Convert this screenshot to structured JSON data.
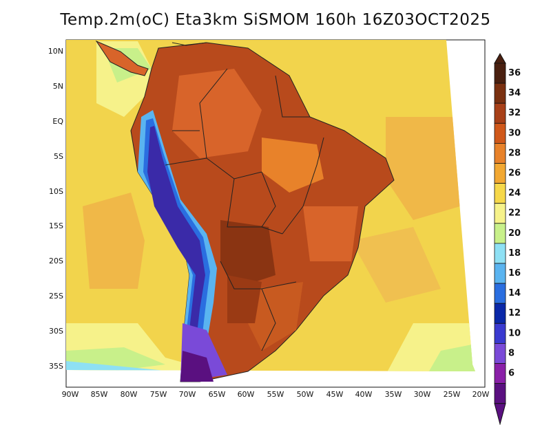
{
  "title": "Temp.2m(oC) Eta3km SiSMOM 160h 16Z03OCT2025",
  "axes": {
    "lat_labels": [
      "10N",
      "5N",
      "EQ",
      "5S",
      "10S",
      "15S",
      "20S",
      "25S",
      "30S",
      "35S"
    ],
    "lon_labels": [
      "90W",
      "85W",
      "80W",
      "75W",
      "70W",
      "65W",
      "60W",
      "55W",
      "50W",
      "45W",
      "40W",
      "35W",
      "30W",
      "25W",
      "20W"
    ]
  },
  "colorbar": {
    "labels": [
      "36",
      "34",
      "32",
      "30",
      "28",
      "26",
      "24",
      "22",
      "20",
      "18",
      "16",
      "14",
      "12",
      "10",
      "8",
      "6"
    ],
    "colors": [
      "#4a2010",
      "#7a3010",
      "#a84018",
      "#d0581a",
      "#e8822a",
      "#f2a832",
      "#f6d84a",
      "#f6f28a",
      "#c8f08a",
      "#8ee0f4",
      "#5ab4f0",
      "#2a6ee0",
      "#0a28a8",
      "#3a3ad0",
      "#7a4ad8",
      "#8a20a8",
      "#5a1080"
    ]
  },
  "colors": {
    "ocean": "#f2d44c",
    "ocean_warm": "#f0b040",
    "land_hot": "#b84a1c",
    "land_warm": "#d8642a",
    "andes_cold": "#3a2aa8",
    "frame": "#111111"
  }
}
